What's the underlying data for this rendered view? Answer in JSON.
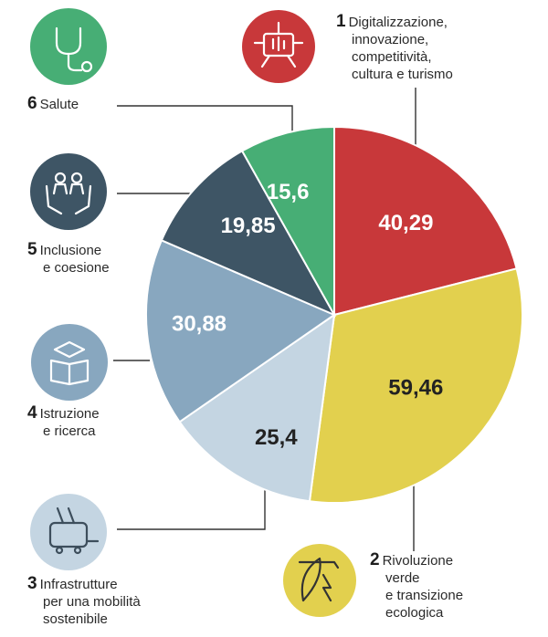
{
  "chart_data": {
    "type": "pie",
    "title": "",
    "start_angle_deg": 0,
    "direction": "clockwise",
    "slices": [
      {
        "id": 1,
        "value": 40.29,
        "label": "40,29",
        "color": "#c8383a",
        "icon": "hand-touch-icon",
        "name_lines": [
          "Digitalizzazione,",
          "innovazione,",
          "competitività,",
          "cultura e turismo"
        ]
      },
      {
        "id": 2,
        "value": 59.46,
        "label": "59,46",
        "color": "#e2d04e",
        "icon": "leaf-energy-icon",
        "name_lines": [
          "Rivoluzione",
          "verde",
          "e transizione",
          "ecologica"
        ]
      },
      {
        "id": 3,
        "value": 25.4,
        "label": "25,4",
        "color": "#c4d5e2",
        "icon": "tram-icon",
        "name_lines": [
          "Infrastrutture",
          "per una mobilità",
          "sostenibile"
        ]
      },
      {
        "id": 4,
        "value": 30.88,
        "label": "30,88",
        "color": "#88a7bf",
        "icon": "graduation-book-icon",
        "name_lines": [
          "Istruzione",
          "e ricerca"
        ]
      },
      {
        "id": 5,
        "value": 19.85,
        "label": "19,85",
        "color": "#3e5565",
        "icon": "people-hands-icon",
        "name_lines": [
          "Inclusione",
          "e coesione"
        ]
      },
      {
        "id": 6,
        "value": 15.6,
        "label": "15,6",
        "color": "#47ae75",
        "icon": "stethoscope-icon",
        "name_lines": [
          "Salute"
        ]
      }
    ]
  },
  "colors": {
    "background": "#ffffff",
    "slice_divider": "#ffffff",
    "connector": "#333333",
    "label_light": "#ffffff",
    "label_dark": "#222222"
  }
}
